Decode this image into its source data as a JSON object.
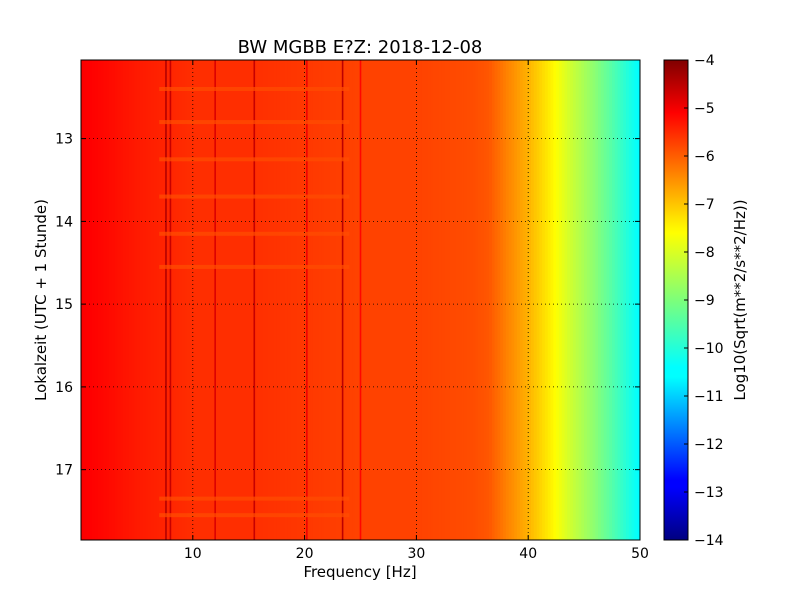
{
  "chart_data": {
    "type": "heatmap",
    "title": "BW MGBB E?Z: 2018-12-08",
    "xlabel": "Frequency [Hz]",
    "ylabel": "Lokalzeit (UTC + 1 Stunde)",
    "xlim": [
      0,
      50
    ],
    "ylim": [
      12.05,
      17.85
    ],
    "y_inverted": true,
    "grid": true,
    "x_ticks": [
      10,
      20,
      30,
      40,
      50
    ],
    "x_tick_labels": [
      "10",
      "20",
      "30",
      "40",
      "50"
    ],
    "y_ticks": [
      13,
      14,
      15,
      16,
      17
    ],
    "y_tick_labels": [
      "13",
      "14",
      "15",
      "16",
      "17"
    ],
    "colorbar": {
      "label": "Log10(Sqrt(m**2/s**2/Hz))",
      "min": -14,
      "max": -4,
      "ticks": [
        -4,
        -5,
        -6,
        -7,
        -8,
        -9,
        -10,
        -11,
        -12,
        -13,
        -14
      ],
      "tick_labels": [
        "−4",
        "−5",
        "−6",
        "−7",
        "−8",
        "−9",
        "−10",
        "−11",
        "−12",
        "−13",
        "−14"
      ],
      "colormap": "jet"
    },
    "spectral_profile": {
      "frequency_hz": [
        0,
        5,
        10,
        15,
        20,
        25,
        30,
        35,
        36.5,
        38,
        40,
        42,
        44,
        46,
        48,
        50
      ],
      "log10_amplitude": [
        -5.2,
        -5.5,
        -5.7,
        -5.7,
        -5.8,
        -5.9,
        -5.9,
        -6.0,
        -6.1,
        -6.5,
        -7.0,
        -7.6,
        -8.3,
        -8.9,
        -9.6,
        -10.3
      ]
    },
    "vertical_lines_hz": [
      {
        "frequency": 7.6,
        "log10_amplitude": -4.5
      },
      {
        "frequency": 8.0,
        "log10_amplitude": -4.7
      },
      {
        "frequency": 12.0,
        "log10_amplitude": -4.9
      },
      {
        "frequency": 15.5,
        "log10_amplitude": -4.7
      },
      {
        "frequency": 20.2,
        "log10_amplitude": -5.1
      },
      {
        "frequency": 23.4,
        "log10_amplitude": -4.6
      },
      {
        "frequency": 25.0,
        "log10_amplitude": -5.3
      }
    ],
    "horizontal_bands_hour": [
      12.4,
      12.8,
      13.25,
      13.7,
      14.15,
      14.55,
      17.35,
      17.55
    ]
  }
}
